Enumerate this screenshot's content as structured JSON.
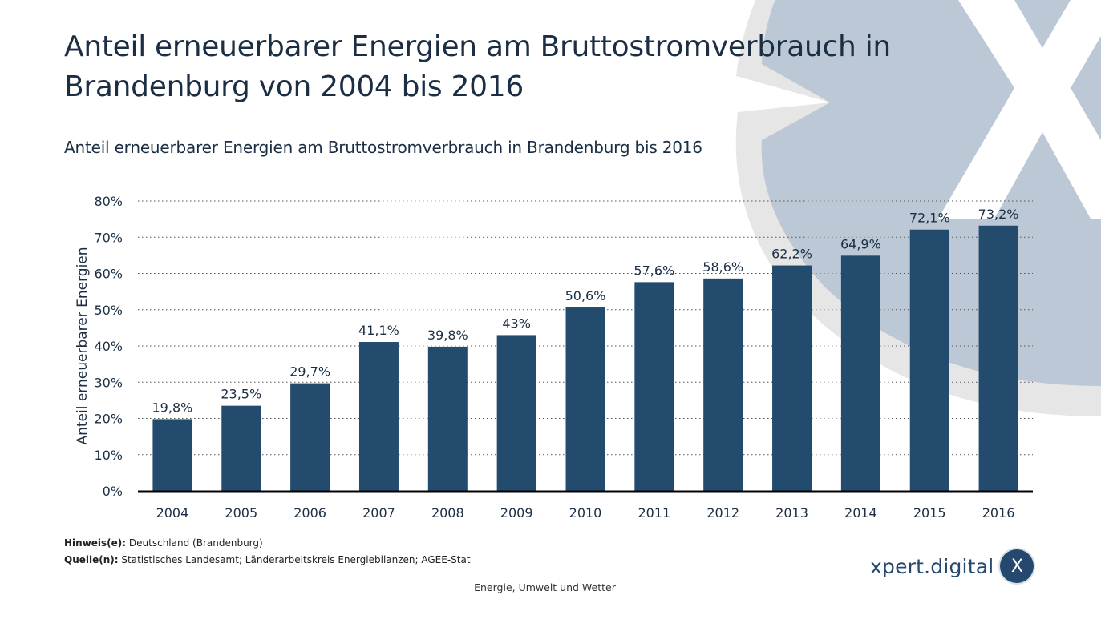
{
  "header": {
    "title": "Anteil erneuerbarer Energien am Bruttostromverbrauch in Brandenburg von 2004 bis 2016",
    "subtitle": "Anteil erneuerbarer Energien am Bruttostromverbrauch in Brandenburg bis 2016"
  },
  "chart_data": {
    "type": "bar",
    "title": "Anteil erneuerbarer Energien am Bruttostromverbrauch in Brandenburg bis 2016",
    "xlabel": "",
    "ylabel": "Anteil erneuerbarer Energien",
    "categories": [
      "2004",
      "2005",
      "2006",
      "2007",
      "2008",
      "2009",
      "2010",
      "2011",
      "2012",
      "2013",
      "2014",
      "2015",
      "2016"
    ],
    "values": [
      19.8,
      23.5,
      29.7,
      41.1,
      39.8,
      43,
      50.6,
      57.6,
      58.6,
      62.2,
      64.9,
      72.1,
      73.2
    ],
    "data_labels": [
      "19,8%",
      "23,5%",
      "29,7%",
      "41,1%",
      "39,8%",
      "43%",
      "50,6%",
      "57,6%",
      "58,6%",
      "62,2%",
      "64,9%",
      "72,1%",
      "73,2%"
    ],
    "ylim": [
      0,
      80
    ],
    "yticks": [
      0,
      10,
      20,
      30,
      40,
      50,
      60,
      70,
      80
    ],
    "ytick_labels": [
      "0%",
      "10%",
      "20%",
      "30%",
      "40%",
      "50%",
      "60%",
      "70%",
      "80%"
    ],
    "grid": "horizontal-dotted",
    "legend": "none",
    "bar_color": "#234b6e"
  },
  "notes": {
    "hint_label": "Hinweis(e):",
    "hint_text": "Deutschland (Brandenburg)",
    "source_label": "Quelle(n):",
    "source_text": "Statistisches Landesamt; Länderarbeitskreis Energiebilanzen; AGEE-Stat"
  },
  "footer": {
    "category": "Energie, Umwelt und Wetter"
  },
  "branding": {
    "logo_text": "xpert.digital",
    "logo_badge": "X",
    "logo_icon": "xpert-x-badge-icon"
  },
  "colors": {
    "title": "#1b2e44",
    "bar": "#234b6e",
    "decor_circle": "#bcc8d5",
    "decor_ring": "#e6e6e6"
  }
}
